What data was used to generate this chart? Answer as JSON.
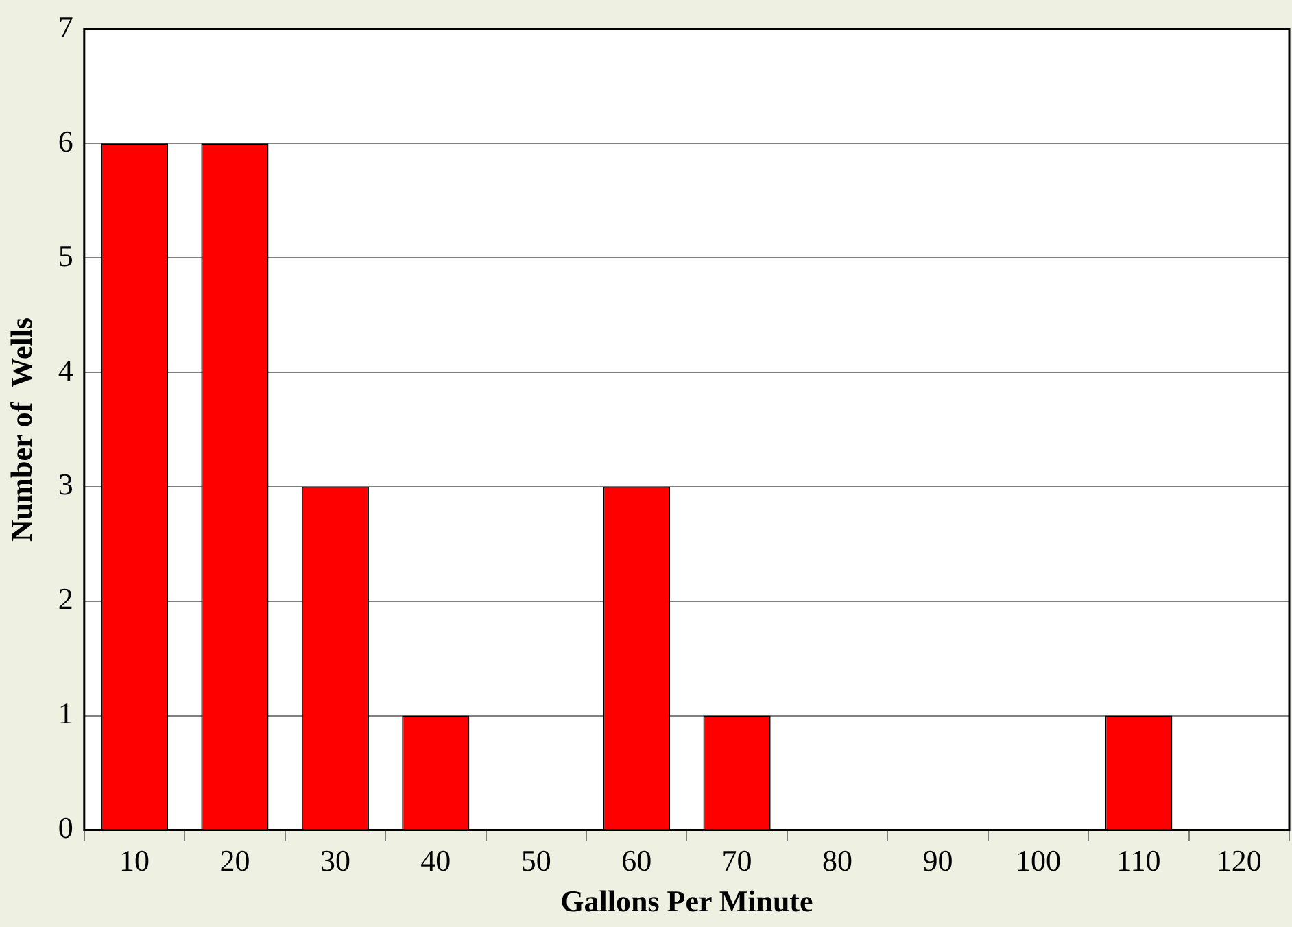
{
  "chart_data": {
    "type": "bar",
    "xlabel": "Gallons Per Minute",
    "ylabel": "Number of  Wells",
    "categories": [
      "10",
      "20",
      "30",
      "40",
      "50",
      "60",
      "70",
      "80",
      "90",
      "100",
      "110",
      "120"
    ],
    "values": [
      6,
      6,
      3,
      1,
      0,
      3,
      1,
      0,
      0,
      0,
      1,
      0
    ],
    "color": "#ff0000",
    "ylim": [
      0,
      7
    ],
    "yticks": [
      0,
      1,
      2,
      3,
      4,
      5,
      6,
      7
    ],
    "grid": "y"
  }
}
